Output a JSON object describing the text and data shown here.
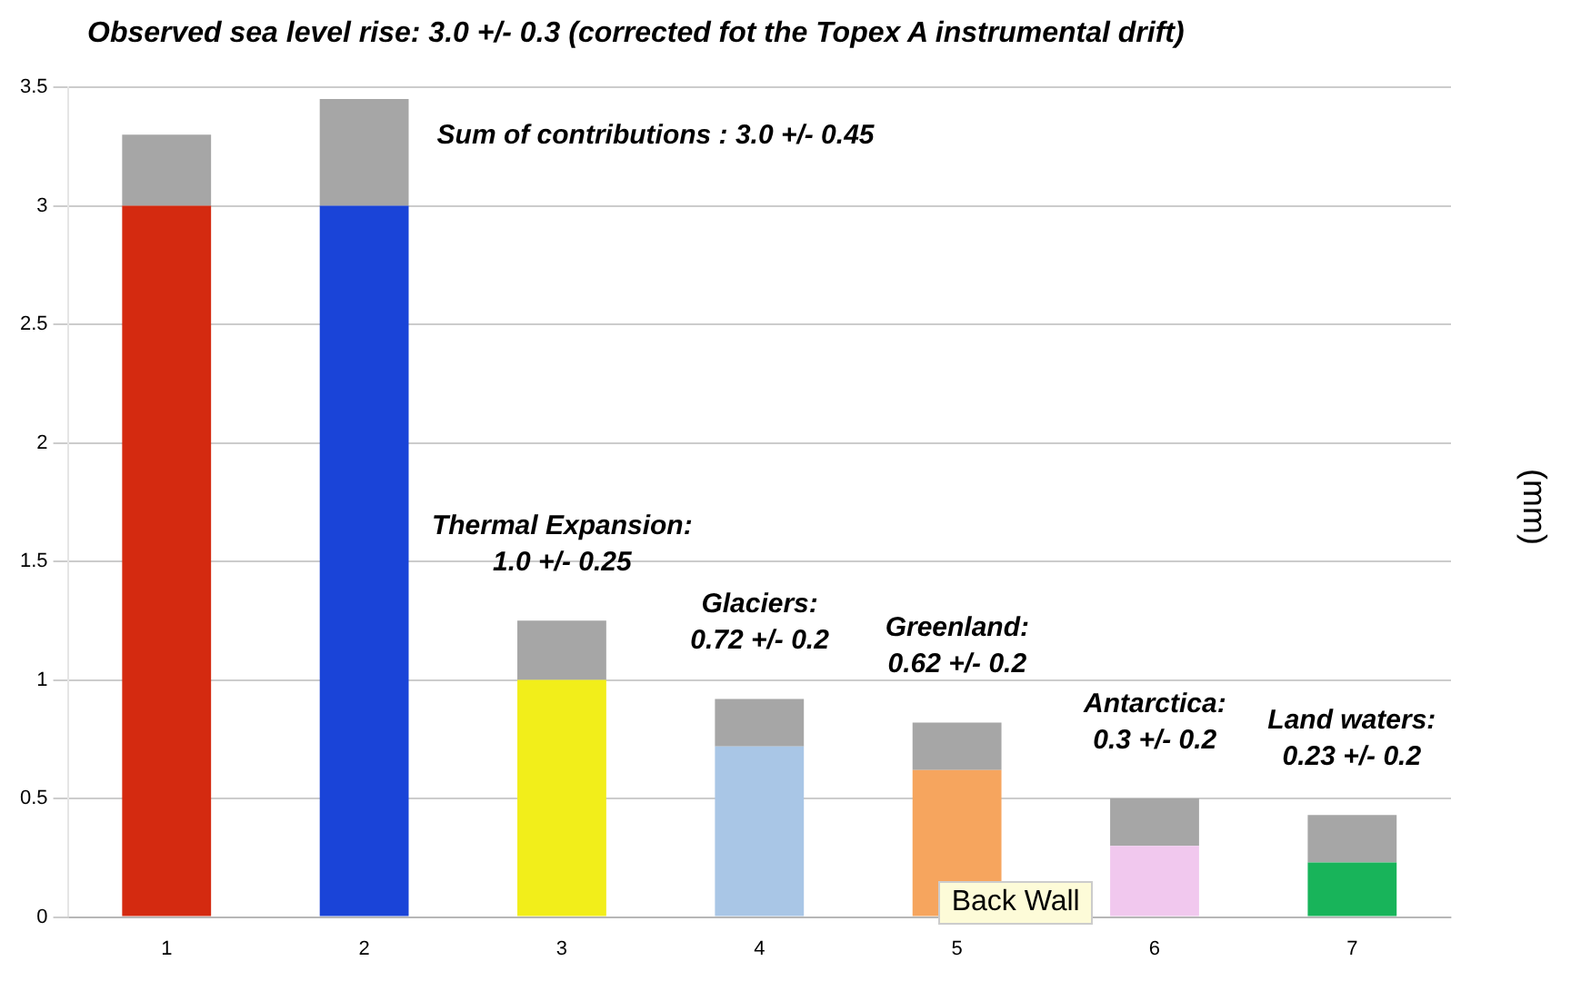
{
  "chart_data": {
    "type": "bar",
    "title": "Observed sea level rise: 3.0 +/- 0.3 (corrected fot the Topex A instrumental drift)",
    "ylabel": "(mm)",
    "categories": [
      "1",
      "2",
      "3",
      "4",
      "5",
      "6",
      "7"
    ],
    "stacked": true,
    "series": [
      {
        "colors": [
          "#d42a10",
          "#1a44d8",
          "#f2ee1a",
          "#a9c6e6",
          "#f6a55e",
          "#f1c8ee",
          "#18b45a"
        ],
        "values": [
          3.0,
          3.0,
          1.0,
          0.72,
          0.62,
          0.3,
          0.23
        ]
      },
      {
        "color": "#a6a6a6",
        "values": [
          0.3,
          0.45,
          0.25,
          0.2,
          0.2,
          0.2,
          0.2
        ]
      }
    ],
    "ylim": [
      0,
      3.5
    ],
    "yticks": [
      0,
      0.5,
      1,
      1.5,
      2,
      2.5,
      3,
      3.5
    ],
    "grid": "y",
    "legend": false,
    "annotations": [
      "Sum of contributions : 3.0 +/- 0.45",
      "Thermal Expansion:\n1.0 +/- 0.25",
      "Glaciers:\n0.72 +/- 0.2",
      "Greenland:\n0.62 +/- 0.2",
      "Antarctica:\n0.3 +/- 0.2",
      "Land waters:\n0.23 +/- 0.2",
      "Back Wall"
    ]
  }
}
